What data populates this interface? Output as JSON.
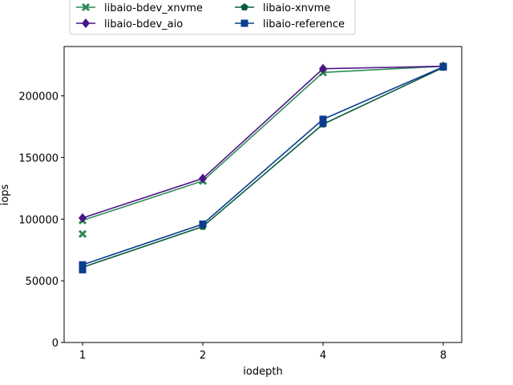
{
  "chart_data": {
    "type": "line",
    "title": "",
    "xlabel": "iodepth",
    "ylabel": "iops",
    "categories": [
      "1",
      "2",
      "4",
      "8"
    ],
    "ylim": [
      0,
      240000
    ],
    "yticks": [
      0,
      50000,
      100000,
      150000,
      200000
    ],
    "yticks_labels": [
      "0",
      "50000",
      "100000",
      "150000",
      "200000"
    ],
    "grid": false,
    "legend_position": "above-plot",
    "series": [
      {
        "name": "libaio-bdev_xnvme",
        "color": "#2e8b57",
        "marker": "x",
        "values": [
          99000,
          131000,
          219000,
          224000
        ],
        "extra_points": [
          [
            1,
            88000
          ]
        ]
      },
      {
        "name": "libaio-xnvme",
        "color": "#0b5c3b",
        "marker": "pentagon",
        "values": [
          61000,
          94000,
          177000,
          223000
        ]
      },
      {
        "name": "libaio-bdev_aio",
        "color": "#4b1486",
        "marker": "diamond",
        "values": [
          101000,
          133000,
          222000,
          224000
        ]
      },
      {
        "name": "libaio-reference",
        "color": "#0b3d8f",
        "marker": "square",
        "values": [
          63000,
          96000,
          181000,
          223500
        ],
        "extra_points": [
          [
            1,
            59000
          ],
          [
            4,
            178000
          ]
        ]
      }
    ]
  }
}
